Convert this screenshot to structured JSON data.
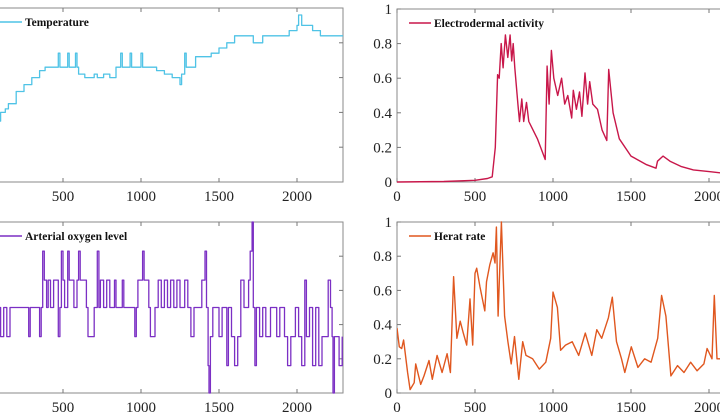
{
  "chart_data": [
    {
      "type": "line",
      "legend": "Temperature",
      "legend_position": "top-left",
      "color": "#4fc3e6",
      "step": true,
      "xlim": [
        0,
        2300
      ],
      "ylim": [
        0,
        1
      ],
      "xticks": [
        500,
        1000,
        1500,
        2000
      ],
      "yticks": [],
      "points": [
        [
          0,
          0.26
        ],
        [
          30,
          0.28
        ],
        [
          60,
          0.35
        ],
        [
          100,
          0.4
        ],
        [
          130,
          0.42
        ],
        [
          150,
          0.45
        ],
        [
          200,
          0.52
        ],
        [
          250,
          0.56
        ],
        [
          300,
          0.6
        ],
        [
          350,
          0.64
        ],
        [
          385,
          0.66
        ],
        [
          450,
          0.66
        ],
        [
          470,
          0.74
        ],
        [
          480,
          0.66
        ],
        [
          530,
          0.74
        ],
        [
          540,
          0.66
        ],
        [
          580,
          0.74
        ],
        [
          590,
          0.66
        ],
        [
          600,
          0.62
        ],
        [
          640,
          0.6
        ],
        [
          700,
          0.62
        ],
        [
          720,
          0.6
        ],
        [
          760,
          0.62
        ],
        [
          800,
          0.6
        ],
        [
          840,
          0.66
        ],
        [
          870,
          0.74
        ],
        [
          880,
          0.66
        ],
        [
          930,
          0.74
        ],
        [
          940,
          0.66
        ],
        [
          1000,
          0.74
        ],
        [
          1010,
          0.66
        ],
        [
          1100,
          0.64
        ],
        [
          1150,
          0.62
        ],
        [
          1200,
          0.6
        ],
        [
          1250,
          0.56
        ],
        [
          1260,
          0.62
        ],
        [
          1280,
          0.74
        ],
        [
          1290,
          0.66
        ],
        [
          1350,
          0.72
        ],
        [
          1450,
          0.74
        ],
        [
          1500,
          0.77
        ],
        [
          1550,
          0.8
        ],
        [
          1600,
          0.84
        ],
        [
          1700,
          0.84
        ],
        [
          1720,
          0.8
        ],
        [
          1780,
          0.84
        ],
        [
          1900,
          0.84
        ],
        [
          1950,
          0.87
        ],
        [
          2000,
          0.9
        ],
        [
          2010,
          0.96
        ],
        [
          2030,
          0.9
        ],
        [
          2100,
          0.87
        ],
        [
          2150,
          0.84
        ],
        [
          2300,
          0.84
        ]
      ]
    },
    {
      "type": "line",
      "legend": "Electrodermal activity",
      "legend_position": "top-left",
      "color": "#c8174a",
      "xlim": [
        0,
        2300
      ],
      "ylim": [
        0,
        1
      ],
      "xticks": [
        0,
        500,
        1000,
        1500,
        2000
      ],
      "yticks": [
        0,
        0.2,
        0.4,
        0.6,
        0.8,
        1
      ],
      "ytick_labels": [
        "0",
        "0.2",
        "0.4",
        "0.6",
        "0.8",
        "1"
      ],
      "points": [
        [
          0,
          0
        ],
        [
          300,
          0.003
        ],
        [
          500,
          0.01
        ],
        [
          580,
          0.02
        ],
        [
          610,
          0.03
        ],
        [
          630,
          0.2
        ],
        [
          645,
          0.62
        ],
        [
          655,
          0.6
        ],
        [
          668,
          0.8
        ],
        [
          680,
          0.66
        ],
        [
          695,
          0.85
        ],
        [
          710,
          0.72
        ],
        [
          725,
          0.85
        ],
        [
          735,
          0.7
        ],
        [
          745,
          0.8
        ],
        [
          755,
          0.66
        ],
        [
          775,
          0.45
        ],
        [
          785,
          0.35
        ],
        [
          800,
          0.48
        ],
        [
          812,
          0.35
        ],
        [
          830,
          0.46
        ],
        [
          845,
          0.35
        ],
        [
          900,
          0.25
        ],
        [
          950,
          0.13
        ],
        [
          962,
          0.67
        ],
        [
          975,
          0.45
        ],
        [
          990,
          0.76
        ],
        [
          1005,
          0.6
        ],
        [
          1030,
          0.5
        ],
        [
          1055,
          0.6
        ],
        [
          1075,
          0.45
        ],
        [
          1095,
          0.5
        ],
        [
          1120,
          0.37
        ],
        [
          1130,
          0.53
        ],
        [
          1150,
          0.42
        ],
        [
          1170,
          0.52
        ],
        [
          1185,
          0.38
        ],
        [
          1205,
          0.63
        ],
        [
          1222,
          0.45
        ],
        [
          1235,
          0.58
        ],
        [
          1255,
          0.45
        ],
        [
          1285,
          0.42
        ],
        [
          1315,
          0.3
        ],
        [
          1345,
          0.24
        ],
        [
          1357,
          0.65
        ],
        [
          1385,
          0.4
        ],
        [
          1425,
          0.25
        ],
        [
          1500,
          0.15
        ],
        [
          1600,
          0.1
        ],
        [
          1660,
          0.08
        ],
        [
          1670,
          0.12
        ],
        [
          1705,
          0.15
        ],
        [
          1750,
          0.12
        ],
        [
          1820,
          0.09
        ],
        [
          1900,
          0.07
        ],
        [
          2000,
          0.06
        ],
        [
          2100,
          0.05
        ],
        [
          2300,
          0.05
        ]
      ]
    },
    {
      "type": "line",
      "legend": "Arterial oxygen level",
      "legend_position": "top-left",
      "color": "#7b2fc4",
      "step": true,
      "xlim": [
        0,
        2300
      ],
      "ylim": [
        0,
        1
      ],
      "xticks": [
        500,
        1000,
        1500,
        2000
      ],
      "yticks": [],
      "points": [
        [
          0,
          0.5
        ],
        [
          100,
          0.33
        ],
        [
          120,
          0.5
        ],
        [
          140,
          0.33
        ],
        [
          160,
          0.5
        ],
        [
          280,
          0.33
        ],
        [
          290,
          0.5
        ],
        [
          350,
          0.33
        ],
        [
          360,
          0.5
        ],
        [
          370,
          0.83
        ],
        [
          380,
          0.66
        ],
        [
          395,
          0.5
        ],
        [
          405,
          0.66
        ],
        [
          420,
          0.5
        ],
        [
          440,
          0.66
        ],
        [
          470,
          0.33
        ],
        [
          480,
          0.5
        ],
        [
          490,
          0.83
        ],
        [
          500,
          0.66
        ],
        [
          510,
          0.5
        ],
        [
          530,
          0.83
        ],
        [
          540,
          0.66
        ],
        [
          570,
          0.5
        ],
        [
          590,
          0.66
        ],
        [
          600,
          0.83
        ],
        [
          610,
          0.66
        ],
        [
          650,
          0.5
        ],
        [
          660,
          0.33
        ],
        [
          700,
          0.5
        ],
        [
          720,
          0.83
        ],
        [
          730,
          0.5
        ],
        [
          740,
          0.66
        ],
        [
          760,
          0.5
        ],
        [
          780,
          0.66
        ],
        [
          800,
          0.5
        ],
        [
          830,
          0.66
        ],
        [
          840,
          0.5
        ],
        [
          880,
          0.66
        ],
        [
          890,
          0.5
        ],
        [
          960,
          0.33
        ],
        [
          970,
          0.5
        ],
        [
          980,
          0.66
        ],
        [
          1010,
          0.83
        ],
        [
          1020,
          0.66
        ],
        [
          1050,
          0.5
        ],
        [
          1060,
          0.33
        ],
        [
          1090,
          0.5
        ],
        [
          1110,
          0.66
        ],
        [
          1130,
          0.5
        ],
        [
          1150,
          0.66
        ],
        [
          1170,
          0.5
        ],
        [
          1190,
          0.66
        ],
        [
          1210,
          0.5
        ],
        [
          1230,
          0.66
        ],
        [
          1250,
          0.5
        ],
        [
          1280,
          0.66
        ],
        [
          1300,
          0.5
        ],
        [
          1320,
          0.33
        ],
        [
          1340,
          0.5
        ],
        [
          1390,
          0.66
        ],
        [
          1410,
          0.83
        ],
        [
          1420,
          0.5
        ],
        [
          1430,
          0.16
        ],
        [
          1436,
          0
        ],
        [
          1445,
          0.33
        ],
        [
          1460,
          0.5
        ],
        [
          1500,
          0.33
        ],
        [
          1520,
          0.5
        ],
        [
          1550,
          0.16
        ],
        [
          1560,
          0.5
        ],
        [
          1580,
          0.33
        ],
        [
          1600,
          0.16
        ],
        [
          1620,
          0.33
        ],
        [
          1640,
          0.66
        ],
        [
          1660,
          0.5
        ],
        [
          1690,
          0.66
        ],
        [
          1700,
          0.83
        ],
        [
          1712,
          1
        ],
        [
          1720,
          0.5
        ],
        [
          1730,
          0.16
        ],
        [
          1740,
          0.5
        ],
        [
          1760,
          0.33
        ],
        [
          1780,
          0.5
        ],
        [
          1800,
          0.33
        ],
        [
          1830,
          0.5
        ],
        [
          1870,
          0.33
        ],
        [
          1890,
          0.5
        ],
        [
          1920,
          0.33
        ],
        [
          1940,
          0.16
        ],
        [
          1960,
          0.33
        ],
        [
          1990,
          0.5
        ],
        [
          2010,
          0.33
        ],
        [
          2030,
          0.16
        ],
        [
          2050,
          0.66
        ],
        [
          2060,
          0.33
        ],
        [
          2080,
          0.5
        ],
        [
          2100,
          0.16
        ],
        [
          2120,
          0.5
        ],
        [
          2140,
          0.16
        ],
        [
          2160,
          0.33
        ],
        [
          2200,
          0.66
        ],
        [
          2215,
          0.5
        ],
        [
          2225,
          0.33
        ],
        [
          2231,
          0
        ],
        [
          2240,
          0.33
        ],
        [
          2270,
          0.16
        ],
        [
          2290,
          0.33
        ]
      ]
    },
    {
      "type": "line",
      "legend": "Herat rate",
      "legend_position": "top-left",
      "color": "#e0571f",
      "xlim": [
        0,
        2300
      ],
      "ylim": [
        0,
        1
      ],
      "xticks": [
        0,
        500,
        1000,
        1500,
        2000
      ],
      "yticks": [
        0,
        0.2,
        0.4,
        0.6,
        0.8,
        1
      ],
      "ytick_labels": [
        "0",
        "0.2",
        "0.4",
        "0.6",
        "0.8",
        "1"
      ],
      "points": [
        [
          0,
          0.38
        ],
        [
          15,
          0.27
        ],
        [
          30,
          0.26
        ],
        [
          42,
          0.31
        ],
        [
          68,
          0.12
        ],
        [
          84,
          0.02
        ],
        [
          110,
          0.06
        ],
        [
          120,
          0.17
        ],
        [
          152,
          0.05
        ],
        [
          173,
          0.1
        ],
        [
          205,
          0.19
        ],
        [
          226,
          0.08
        ],
        [
          257,
          0.22
        ],
        [
          289,
          0.12
        ],
        [
          321,
          0.23
        ],
        [
          342,
          0.12
        ],
        [
          363,
          0.68
        ],
        [
          384,
          0.32
        ],
        [
          405,
          0.42
        ],
        [
          425,
          0.35
        ],
        [
          447,
          0.28
        ],
        [
          468,
          0.55
        ],
        [
          485,
          0.28
        ],
        [
          500,
          0.7
        ],
        [
          511,
          0.73
        ],
        [
          532,
          0.62
        ],
        [
          563,
          0.48
        ],
        [
          574,
          0.65
        ],
        [
          595,
          0.75
        ],
        [
          616,
          0.82
        ],
        [
          628,
          0.76
        ],
        [
          637,
          0.97
        ],
        [
          648,
          0.45
        ],
        [
          669,
          1
        ],
        [
          690,
          0.45
        ],
        [
          711,
          0.3
        ],
        [
          732,
          0.17
        ],
        [
          753,
          0.33
        ],
        [
          781,
          0.08
        ],
        [
          806,
          0.3
        ],
        [
          827,
          0.22
        ],
        [
          869,
          0.2
        ],
        [
          912,
          0.14
        ],
        [
          954,
          0.18
        ],
        [
          985,
          0.32
        ],
        [
          1000,
          0.59
        ],
        [
          1028,
          0.5
        ],
        [
          1049,
          0.25
        ],
        [
          1080,
          0.28
        ],
        [
          1123,
          0.3
        ],
        [
          1165,
          0.22
        ],
        [
          1207,
          0.35
        ],
        [
          1249,
          0.22
        ],
        [
          1281,
          0.37
        ],
        [
          1312,
          0.32
        ],
        [
          1355,
          0.44
        ],
        [
          1380,
          0.56
        ],
        [
          1407,
          0.3
        ],
        [
          1439,
          0.2
        ],
        [
          1460,
          0.12
        ],
        [
          1502,
          0.27
        ],
        [
          1544,
          0.15
        ],
        [
          1587,
          0.2
        ],
        [
          1629,
          0.18
        ],
        [
          1671,
          0.32
        ],
        [
          1696,
          0.57
        ],
        [
          1724,
          0.45
        ],
        [
          1756,
          0.1
        ],
        [
          1798,
          0.16
        ],
        [
          1840,
          0.12
        ],
        [
          1882,
          0.18
        ],
        [
          1924,
          0.13
        ],
        [
          1967,
          0.17
        ],
        [
          1988,
          0.26
        ],
        [
          2019,
          0.2
        ],
        [
          2034,
          0.57
        ],
        [
          2051,
          0.2
        ],
        [
          2100,
          0.2
        ]
      ]
    }
  ]
}
